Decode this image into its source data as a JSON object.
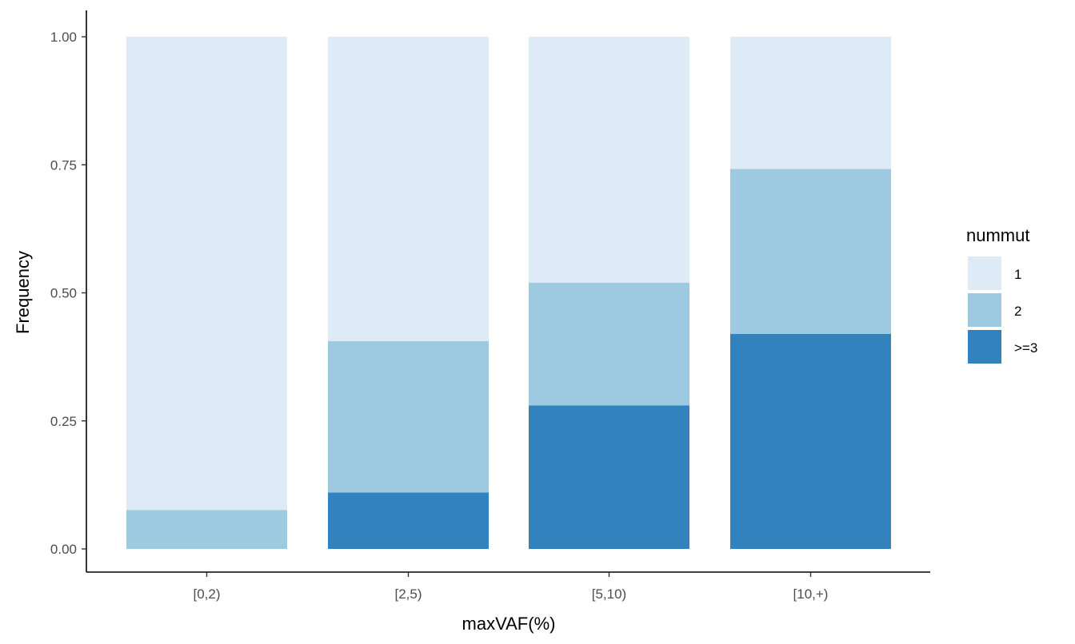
{
  "chart_data": {
    "type": "bar",
    "stacked": true,
    "categories": [
      "[0,2)",
      "[2,5)",
      "[5,10)",
      "[10,+)"
    ],
    "xlabel": "maxVAF(%)",
    "ylabel": "Frequency",
    "ylim": [
      0,
      1
    ],
    "yticks": [
      "0.00",
      "0.25",
      "0.50",
      "0.75",
      "1.00"
    ],
    "ytick_values": [
      0,
      0.25,
      0.5,
      0.75,
      1.0
    ],
    "grid": false,
    "legend": {
      "title": "nummut",
      "placement": "right"
    },
    "series": [
      {
        "name": ">=3",
        "color": "#3182bd",
        "values": [
          0.0,
          0.11,
          0.28,
          0.42
        ]
      },
      {
        "name": "2",
        "color": "#9ecae1",
        "values": [
          0.076,
          0.296,
          0.24,
          0.322
        ]
      },
      {
        "name": "1",
        "color": "#deebf7",
        "values": [
          0.924,
          0.594,
          0.48,
          0.258
        ]
      }
    ],
    "legend_order": [
      "1",
      "2",
      ">=3"
    ]
  }
}
